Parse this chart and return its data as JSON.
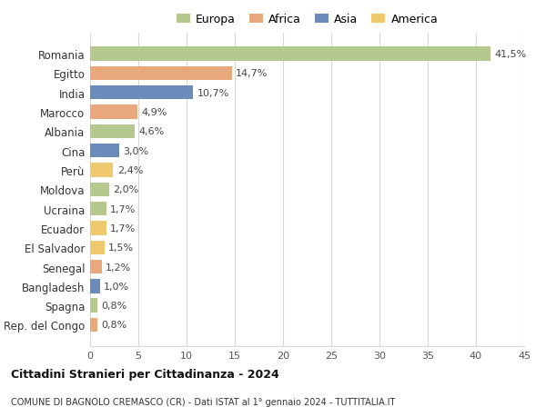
{
  "countries": [
    "Romania",
    "Egitto",
    "India",
    "Marocco",
    "Albania",
    "Cina",
    "Perù",
    "Moldova",
    "Ucraina",
    "Ecuador",
    "El Salvador",
    "Senegal",
    "Bangladesh",
    "Spagna",
    "Rep. del Congo"
  ],
  "values": [
    41.5,
    14.7,
    10.7,
    4.9,
    4.6,
    3.0,
    2.4,
    2.0,
    1.7,
    1.7,
    1.5,
    1.2,
    1.0,
    0.8,
    0.8
  ],
  "labels": [
    "41,5%",
    "14,7%",
    "10,7%",
    "4,9%",
    "4,6%",
    "3,0%",
    "2,4%",
    "2,0%",
    "1,7%",
    "1,7%",
    "1,5%",
    "1,2%",
    "1,0%",
    "0,8%",
    "0,8%"
  ],
  "colors": [
    "#b5c98e",
    "#e8a87c",
    "#6b8cba",
    "#e8a87c",
    "#b5c98e",
    "#6b8cba",
    "#f0c96e",
    "#b5c98e",
    "#b5c98e",
    "#f0c96e",
    "#f0c96e",
    "#e8a87c",
    "#6b8cba",
    "#b5c98e",
    "#e8a87c"
  ],
  "continents": [
    "Europa",
    "Africa",
    "Asia",
    "America"
  ],
  "legend_colors": [
    "#b5c98e",
    "#e8a87c",
    "#6b8cba",
    "#f0c96e"
  ],
  "title": "Cittadini Stranieri per Cittadinanza - 2024",
  "subtitle": "COMUNE DI BAGNOLO CREMASCO (CR) - Dati ISTAT al 1° gennaio 2024 - TUTTITALIA.IT",
  "xlim": [
    0,
    45
  ],
  "xticks": [
    0,
    5,
    10,
    15,
    20,
    25,
    30,
    35,
    40,
    45
  ],
  "background_color": "#ffffff",
  "grid_color": "#d8d8d8",
  "label_fontsize": 8,
  "ytick_fontsize": 8.5,
  "xtick_fontsize": 8,
  "bar_height": 0.72
}
